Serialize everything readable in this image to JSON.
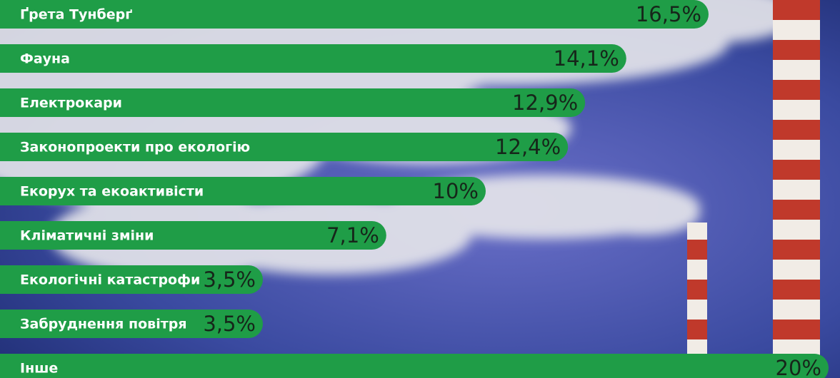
{
  "chart_data": {
    "type": "bar",
    "orientation": "horizontal",
    "categories": [
      "Ґрета Тунберґ",
      "Фауна",
      "Електрокари",
      "Законопроекти про екологію",
      "Екорух та екоактивісти",
      "Кліматичні зміни",
      "Екологічні катастрофи",
      "Забруднення повітря",
      "Інше"
    ],
    "values": [
      16.5,
      14.1,
      12.9,
      12.4,
      10,
      7.1,
      3.5,
      3.5,
      20
    ],
    "value_labels": [
      "16,5%",
      "14,1%",
      "12,9%",
      "12,4%",
      "10%",
      "7,1%",
      "3,5%",
      "3,5%",
      "20%"
    ],
    "color": "#1f9d47"
  }
}
